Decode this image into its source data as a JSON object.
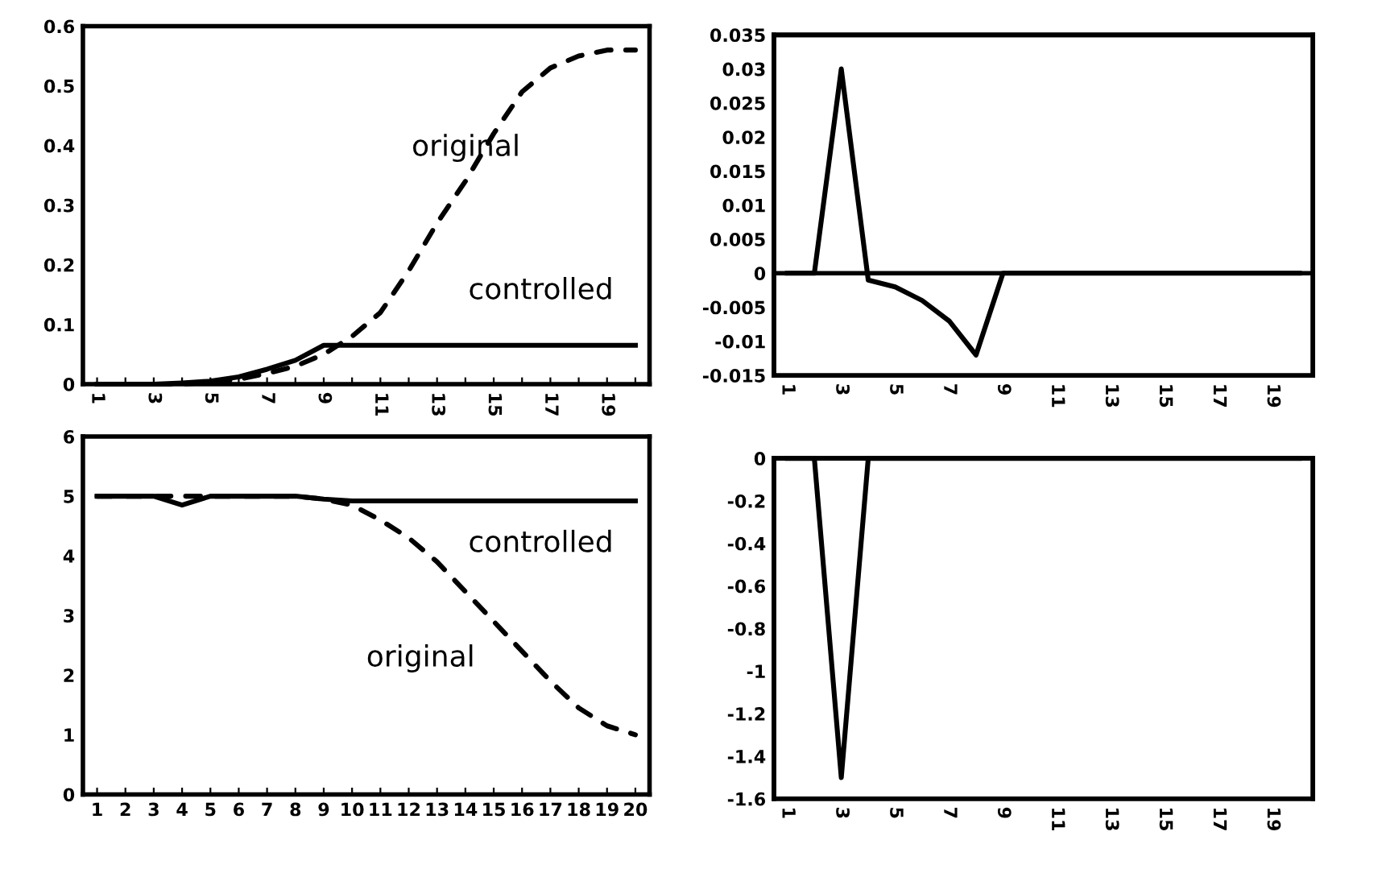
{
  "chart_data": [
    {
      "type": "line",
      "categories": [
        "1",
        null,
        "3",
        null,
        "5",
        null,
        "7",
        null,
        "9",
        null,
        "11",
        null,
        "13",
        null,
        "15",
        null,
        "17",
        null,
        "19",
        null
      ],
      "ylim": [
        0,
        0.6
      ],
      "yticks": [
        {
          "value": 0,
          "label": "0"
        },
        0.1,
        0.2,
        0.3,
        0.4,
        0.5,
        0.6
      ],
      "marker": "none",
      "series": [
        {
          "name": "original",
          "color": "#000000",
          "line_style": "dashed",
          "values": [
            0,
            0,
            0,
            0,
            0.003,
            0.008,
            0.018,
            0.03,
            0.05,
            0.08,
            0.12,
            0.19,
            0.27,
            0.34,
            0.42,
            0.49,
            0.53,
            0.55,
            0.56,
            0.56
          ]
        },
        {
          "name": "controlled",
          "color": "#000000",
          "line_style": "solid",
          "values": [
            0,
            0,
            0,
            0.002,
            0.005,
            0.012,
            0.025,
            0.04,
            0.065,
            0.065,
            0.065,
            0.065,
            0.065,
            0.065,
            0.065,
            0.065,
            0.065,
            0.065,
            0.065,
            0.065
          ]
        }
      ]
    },
    {
      "type": "line",
      "categories": [
        "1",
        null,
        "3",
        null,
        "5",
        null,
        "7",
        null,
        "9",
        null,
        "11",
        null,
        "13",
        null,
        "15",
        null,
        "17",
        null,
        "19",
        null
      ],
      "ylim": [
        -0.015,
        0.035
      ],
      "yticks": [
        {
          "value": -0.015,
          "label": "-0.015"
        },
        {
          "value": -0.01,
          "label": "-0.01"
        },
        {
          "value": -0.005,
          "label": "-0.005"
        },
        {
          "value": 0,
          "label": "0"
        },
        0.005,
        0.01,
        0.015,
        0.02,
        0.025,
        0.03,
        0.035
      ],
      "marker": "none",
      "series": [
        {
          "color": "#000000",
          "line_style": "solid",
          "values": [
            0,
            0,
            0.03,
            -0.001,
            -0.002,
            -0.004,
            -0.007,
            -0.012,
            0,
            0,
            0,
            0,
            0,
            0,
            0,
            0,
            0,
            0,
            0,
            0
          ]
        }
      ]
    },
    {
      "type": "line",
      "categories": [
        "1",
        "2",
        "3",
        "4",
        "5",
        "6",
        "7",
        "8",
        "9",
        "10",
        "11",
        "12",
        "13",
        "14",
        "15",
        "16",
        "17",
        "18",
        "19",
        "20"
      ],
      "ylim": [
        0,
        6
      ],
      "yticks": [
        0,
        1,
        2,
        3,
        4,
        5,
        6
      ],
      "marker": "none",
      "series": [
        {
          "name": "controlled",
          "color": "#000000",
          "line_style": "solid",
          "values": [
            5,
            5,
            5,
            4.85,
            5,
            5,
            5,
            5,
            4.95,
            4.92,
            4.92,
            4.92,
            4.92,
            4.92,
            4.92,
            4.92,
            4.92,
            4.92,
            4.92,
            4.92
          ]
        },
        {
          "name": "original",
          "color": "#000000",
          "line_style": "dashed",
          "values": [
            5,
            5,
            5,
            5,
            5,
            5,
            5,
            5,
            4.95,
            4.85,
            4.6,
            4.3,
            3.9,
            3.4,
            2.9,
            2.4,
            1.9,
            1.45,
            1.15,
            1.0
          ]
        }
      ]
    },
    {
      "type": "line",
      "categories": [
        "1",
        null,
        "3",
        null,
        "5",
        null,
        "7",
        null,
        "9",
        null,
        "11",
        null,
        "13",
        null,
        "15",
        null,
        "17",
        null,
        "19",
        null
      ],
      "ylim": [
        -1.6,
        0
      ],
      "yticks": [
        {
          "value": -1.6,
          "label": "-1.6"
        },
        {
          "value": -1.4,
          "label": "-1.4"
        },
        {
          "value": -1.2,
          "label": "-1.2"
        },
        {
          "value": -1,
          "label": "-1"
        },
        {
          "value": -0.8,
          "label": "-0.8"
        },
        {
          "value": -0.6,
          "label": "-0.6"
        },
        {
          "value": -0.4,
          "label": "-0.4"
        },
        {
          "value": -0.2,
          "label": "-0.2"
        },
        0
      ],
      "marker": "none",
      "series": [
        {
          "color": "#000000",
          "line_style": "solid",
          "values": [
            0,
            0,
            -1.5,
            0,
            0,
            0,
            0,
            0,
            0,
            0,
            0,
            0,
            0,
            0,
            0,
            0,
            0,
            0,
            0,
            0
          ]
        }
      ]
    }
  ]
}
